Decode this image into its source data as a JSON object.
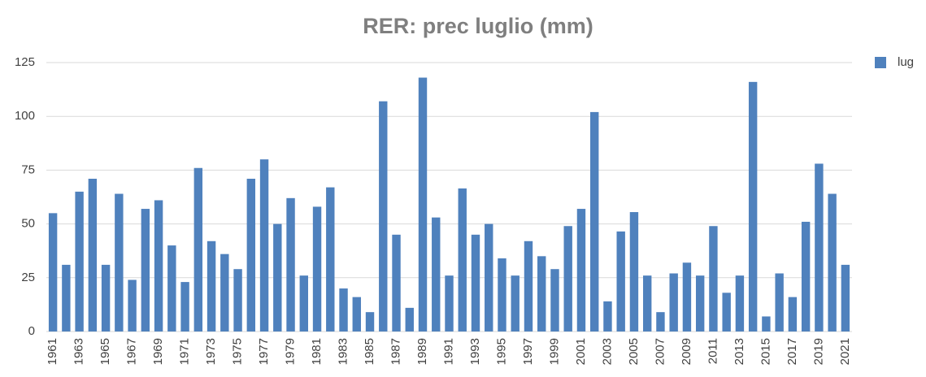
{
  "chart_data": {
    "type": "bar",
    "title": "RER: prec luglio (mm)",
    "categories": [
      "1961",
      null,
      "1963",
      null,
      "1965",
      null,
      "1967",
      null,
      "1969",
      null,
      "1971",
      null,
      "1973",
      null,
      "1975",
      null,
      "1977",
      null,
      "1979",
      null,
      "1981",
      null,
      "1983",
      null,
      "1985",
      null,
      "1987",
      null,
      "1989",
      null,
      "1991",
      null,
      "1993",
      null,
      "1995",
      null,
      "1997",
      null,
      "1999",
      null,
      "2001",
      null,
      "2003",
      null,
      "2005",
      null,
      "2007",
      null,
      "2009",
      null,
      "2011",
      null,
      "2013",
      null,
      "2015",
      null,
      "2017",
      null,
      "2019",
      null,
      "2021"
    ],
    "series": [
      {
        "name": "lug",
        "color": "#4f81bd",
        "values": [
          55,
          31,
          65,
          71,
          31,
          64,
          24,
          57,
          61,
          40,
          23,
          76,
          42,
          36,
          29,
          71,
          80,
          50,
          62,
          26,
          58,
          67,
          20,
          16,
          9,
          107,
          45,
          11,
          118,
          53,
          26,
          66.5,
          45,
          50,
          34,
          26,
          42,
          35,
          29,
          49,
          57,
          102,
          14,
          46.5,
          55.5,
          26,
          9,
          27,
          32,
          26,
          49,
          18,
          26,
          116,
          7,
          27,
          16,
          51,
          78,
          64,
          31
        ]
      }
    ],
    "ylim": [
      0,
      125
    ],
    "yticks": [
      0,
      25,
      50,
      75,
      100,
      125
    ],
    "grid": true,
    "legend": "right"
  }
}
